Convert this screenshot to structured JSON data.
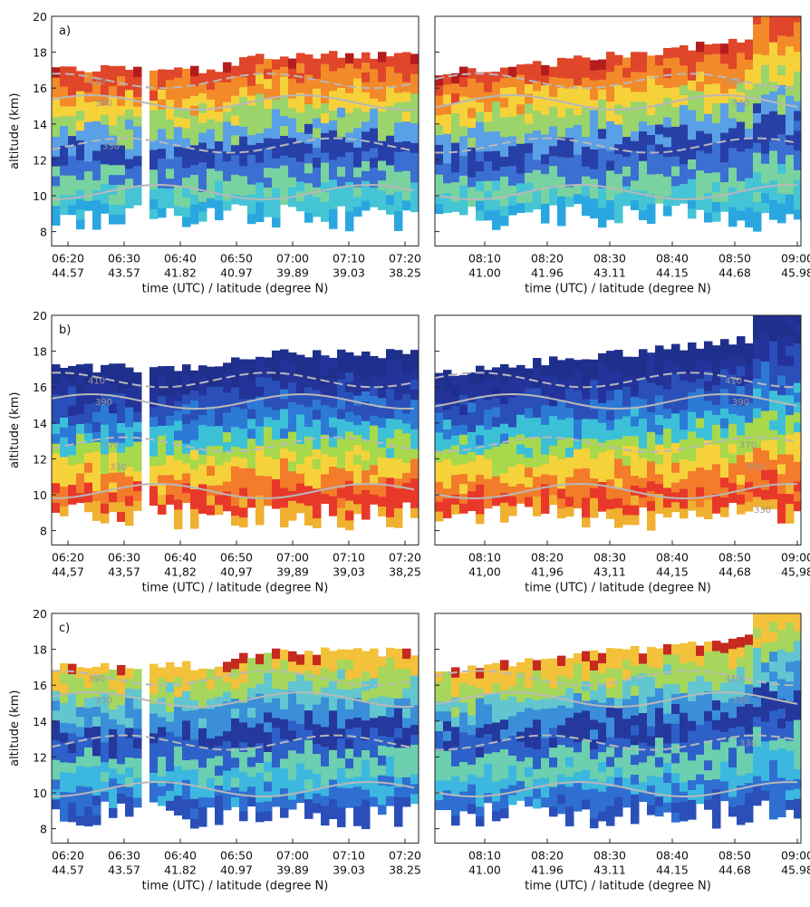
{
  "chart_data": [
    {
      "type": "heatmap",
      "panel_label": "a)",
      "ylabel": "altitude (km)",
      "xlabel": "time (UTC) / latitude (degree N)",
      "ylim": [
        7.2,
        20
      ],
      "yticks": [
        8,
        10,
        12,
        14,
        16,
        18,
        20
      ],
      "xticks": [
        "06:20",
        "06:30",
        "06:40",
        "06:50",
        "07:00",
        "07:10",
        "07:20"
      ],
      "xtick_latitudes": [
        "44.57",
        "43.57",
        "41.82",
        "40.97",
        "39.89",
        "39.03",
        "38.25"
      ],
      "contour_labels": [
        "410",
        "390",
        "330"
      ]
    },
    {
      "type": "heatmap",
      "xlabel": "time (UTC) / latitude (degree N)",
      "ylim": [
        7.2,
        20
      ],
      "yticks": [
        8,
        10,
        12,
        14,
        16,
        18,
        20
      ],
      "xticks": [
        "08:10",
        "08:20",
        "08:30",
        "08:40",
        "08:50",
        "09:00"
      ],
      "xtick_latitudes": [
        "41.00",
        "41.96",
        "43.11",
        "44.15",
        "44.68",
        "45.98"
      ],
      "contour_labels": [
        "350",
        "330"
      ]
    },
    {
      "type": "heatmap",
      "panel_label": "b)",
      "ylabel": "altitude (km)",
      "xlabel": "time (UTC) / latitude (degree N)",
      "ylim": [
        7.2,
        20
      ],
      "yticks": [
        8,
        10,
        12,
        14,
        16,
        18,
        20
      ],
      "xticks": [
        "06:20",
        "06:30",
        "06:40",
        "06:50",
        "07:00",
        "07:10",
        "07:20"
      ],
      "xtick_latitudes": [
        "44,57",
        "43,57",
        "41,82",
        "40,97",
        "39,89",
        "39,03",
        "38,25"
      ],
      "contour_labels": [
        "410",
        "390",
        "370",
        "330"
      ]
    },
    {
      "type": "heatmap",
      "xlabel": "time (UTC) / latitude (degree N)",
      "ylim": [
        7.2,
        20
      ],
      "yticks": [
        8,
        10,
        12,
        14,
        16,
        18,
        20
      ],
      "xticks": [
        "08:10",
        "08:20",
        "08:30",
        "08:40",
        "08:50",
        "09:00"
      ],
      "xtick_latitudes": [
        "41,00",
        "41,96",
        "43,11",
        "44,15",
        "44,68",
        "45,98"
      ],
      "contour_labels": [
        "410",
        "390",
        "370",
        "350",
        "330"
      ]
    },
    {
      "type": "heatmap",
      "panel_label": "c)",
      "ylabel": "altitude (km)",
      "xlabel": "time (UTC) / latitude (degree N)",
      "ylim": [
        7.2,
        20
      ],
      "yticks": [
        8,
        10,
        12,
        14,
        16,
        18,
        20
      ],
      "xticks": [
        "06:20",
        "06:30",
        "06:40",
        "06:50",
        "07:00",
        "07:10",
        "07:20"
      ],
      "xtick_latitudes": [
        "44.57",
        "43.57",
        "41.82",
        "40.97",
        "39.89",
        "39.03",
        "38.25"
      ],
      "contour_labels": [
        "390",
        "330"
      ]
    },
    {
      "type": "heatmap",
      "xlabel": "time (UTC) / latitude (degree N)",
      "ylim": [
        7.2,
        20
      ],
      "yticks": [
        8,
        10,
        12,
        14,
        16,
        18,
        20
      ],
      "xticks": [
        "08:10",
        "08:20",
        "08:30",
        "08:40",
        "08:50",
        "09:00"
      ],
      "xtick_latitudes": [
        "41.00",
        "41.96",
        "43.11",
        "44.15",
        "44.68",
        "45.98"
      ],
      "contour_labels": [
        "410",
        "350",
        "330"
      ]
    }
  ]
}
